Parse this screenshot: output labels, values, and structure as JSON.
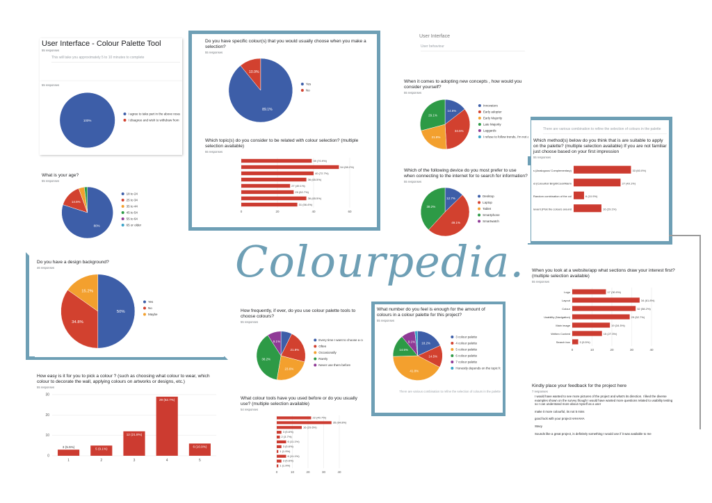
{
  "brand": "Colourpedia.",
  "panels": [
    {
      "title": "User Interface - Colour Palette Tool",
      "responses": "55 responses",
      "note": "This will take you approximately 5 to 10 minutes to complete"
    },
    {
      "responses": "55 responses",
      "chart": {
        "type": "pie",
        "categories": [
          "I agree to take part in the above research project",
          "I disagree and wish to withdraw from the research"
        ],
        "values": [
          100,
          0
        ],
        "value_labels": [
          "100%",
          null
        ],
        "colors": [
          "#3d5ea8",
          "#d2412f"
        ]
      }
    },
    {
      "question": "What is your age?",
      "responses": "55 responses",
      "chart": {
        "type": "pie",
        "categories": [
          "18 to 24",
          "25 to 34",
          "35 to 44",
          "45 to 54",
          "55 to 64",
          "65 or older"
        ],
        "values": [
          80,
          14.5,
          3.6,
          1.9,
          0,
          0
        ],
        "value_labels": [
          "80%",
          "14.5%",
          null,
          null,
          null,
          null
        ],
        "colors": [
          "#3d5ea8",
          "#d2412f",
          "#f3a02e",
          "#2d9a46",
          "#8f3a96",
          "#3aa3c8"
        ]
      }
    },
    {
      "question": "Do you have specific colour(s) that you would usually choose when you make a selection?",
      "responses": "55 responses",
      "chart": {
        "type": "pie",
        "categories": [
          "Yes",
          "No"
        ],
        "values": [
          89.1,
          10.9
        ],
        "value_labels": [
          "89.1%",
          "10.9%"
        ],
        "colors": [
          "#3d5ea8",
          "#d2412f"
        ]
      }
    },
    {
      "question": "Which topic(s) do you consider to be related with colour selection? (multiple selection available)",
      "responses": "55 responses",
      "chart": {
        "type": "hbar",
        "values": [
          39,
          54,
          40,
          36,
          27,
          29,
          36,
          31
        ],
        "value_labels": [
          "39 (70.9%)",
          "54 (98.2%)",
          "40 (72.7%)",
          "36 (65.5%)",
          "27 (49.1%)",
          "29 (52.7%)",
          "36 (65.5%)",
          "31 (56.4%)"
        ],
        "color": "#cc3b30",
        "xlim": [
          0,
          60
        ],
        "xticks": [
          0,
          20,
          40,
          60
        ]
      }
    },
    {
      "section": "User Interface",
      "note": "User behaviour"
    },
    {
      "question": "When it comes to adopting new concepts , how would you consider yourself?",
      "responses": "55 responses",
      "chart": {
        "type": "pie",
        "categories": [
          "Innovators",
          "Early adopter",
          "Early Majority",
          "Late Majority",
          "Laggards",
          "I refuse to follow trends, I'm not a sheep"
        ],
        "values": [
          14.5,
          34.5,
          21.8,
          29.1,
          0,
          0
        ],
        "value_labels": [
          "14.5%",
          "34.5%",
          "21.8%",
          "29.1%",
          null,
          null
        ],
        "colors": [
          "#3d5ea8",
          "#d2412f",
          "#f3a02e",
          "#2d9a46",
          "#8f3a96",
          "#3aa3c8"
        ]
      }
    },
    {
      "question": "Which of the following device do you most prefer to use when connecting to the internet for to search for information?",
      "responses": "55 responses",
      "chart": {
        "type": "pie",
        "categories": [
          "Desktop",
          "Laptop",
          "Tablet",
          "Smartphone",
          "Smartwatch"
        ],
        "values": [
          12.7,
          49.1,
          0,
          38.2,
          0
        ],
        "value_labels": [
          "12.7%",
          "49.1%",
          null,
          "38.2%",
          null
        ],
        "colors": [
          "#3d5ea8",
          "#d2412f",
          "#f3a02e",
          "#2d9a46",
          "#8f3a96"
        ]
      }
    },
    {
      "note": "There are various combination to refine the selection of colours in the palette",
      "question": "Which method(s) below do you think that is are suitable to apply on the palette? (multiple selection available) If you are not familiar just choose based on your first impression",
      "responses": "55 responses",
      "chart": {
        "type": "hbar",
        "categories": [
          "Colour Tones (Analogous/ Complementary)",
          "Colour Mood (Colourful/ Bright/Cool/Warm",
          "Randomly (Random combination of the col",
          "Most relevant (Pick the colours around"
        ],
        "values": [
          33,
          27,
          6,
          16
        ],
        "value_labels": [
          "33 (60.0%)",
          "27 (49.1%)",
          "6 (10.9%)",
          "16 (29.1%)"
        ],
        "color": "#cc3b30",
        "xlim": [
          0,
          40
        ]
      }
    },
    {
      "question": "Do you have a design background?",
      "responses": "46 responses",
      "chart": {
        "type": "pie",
        "categories": [
          "Yes",
          "No",
          "Maybe"
        ],
        "values": [
          50,
          34.8,
          15.2
        ],
        "value_labels": [
          "50%",
          "34.8%",
          "15.2%"
        ],
        "colors": [
          "#3d5ea8",
          "#d2412f",
          "#f3a02e"
        ]
      }
    },
    {
      "question": "How frequently, if ever, do you use colour palette tools to choose colours?",
      "responses": "55 responses",
      "chart": {
        "type": "pie",
        "categories": [
          "Every time I want to choose a colour",
          "Often",
          "Occasionally",
          "Rarely",
          "Never use them before"
        ],
        "values": [
          7.3,
          21.8,
          23.6,
          38.2,
          9.1
        ],
        "value_labels": [
          null,
          "21.8%",
          "23.6%",
          "38.2%",
          "9.1%"
        ],
        "colors": [
          "#3d5ea8",
          "#d2412f",
          "#f3a02e",
          "#2d9a46",
          "#8f3a96"
        ]
      }
    },
    {
      "question": "What colour tools have you used before or do you usually use? (multiple selection available)",
      "responses": "54 responses",
      "chart": {
        "type": "hbar",
        "values": [
          22,
          35,
          16,
          3,
          2,
          6,
          3,
          1,
          6,
          3,
          1
        ],
        "value_labels": [
          "22 (40.7%)",
          "35 (64.8%)",
          "16 (29.6%)",
          "3 (5.6%)",
          "2 (3.7%)",
          "6 (11.1%)",
          "3 (5.6%)",
          "1 (1.9%)",
          "6 (11.1%)",
          "3 (5.6%)",
          "1 (1.9%)"
        ],
        "color": "#cc3b30",
        "xlim": [
          0,
          40
        ],
        "xticks": [
          0,
          10,
          20,
          30,
          40
        ]
      }
    },
    {
      "question": "What number do you feel is enough for the amount of colours in a colour palette for this project?",
      "responses": "55 responses",
      "chart": {
        "type": "pie",
        "categories": [
          "3 colour palette",
          "4 colour palette",
          "5 colour palette",
          "6 colour palette",
          "7 colour palette",
          "Honestly depends on the topic for me"
        ],
        "values": [
          18.2,
          14.5,
          41.8,
          14.5,
          9.1,
          1.9
        ],
        "value_labels": [
          "18.2%",
          "14.5%",
          "41.8%",
          "14.5%",
          "9.1%",
          null
        ],
        "colors": [
          "#3d5ea8",
          "#d2412f",
          "#f3a02e",
          "#2d9a46",
          "#8f3a96",
          "#3aa3c8"
        ]
      },
      "footer": "There are various combination to refine the selection of colours in the palette"
    },
    {
      "question": "When you look at a website/app what sections draw your interest first? (multiple selection available)",
      "responses": "55 responses",
      "chart": {
        "type": "hbar",
        "categories": [
          "Logo",
          "Layout",
          "Colour",
          "Usability (Navigation)",
          "Main image",
          "Written Content",
          "Search box"
        ],
        "values": [
          17,
          34,
          32,
          29,
          19,
          15,
          3
        ],
        "value_labels": [
          "17 (30.9%)",
          "34 (61.8%)",
          "32 (58.2%)",
          "29 (52.7%)",
          "19 (34.5%)",
          "15 (27.3%)",
          "3 (5.5%)"
        ],
        "color": "#cc3b30",
        "xlim": [
          0,
          40
        ],
        "xticks": [
          0,
          10,
          20,
          30,
          40
        ]
      }
    },
    {
      "question": "Kindly place your feedback for the project here",
      "responses": "7 responses",
      "answers": [
        "I would have wanted to see more pictures of the project and what's its direction. I liked the diverse examples shown on the survey though I would have wanted more questions related to usability testing so I can understand more about myself as a user",
        "make it more colourful, its not 5 mins",
        "good luck with your project HAHAHA",
        "Stacy",
        "Sounds like a great project, is definitely something I would use if it was available to me"
      ]
    },
    {
      "question": "How easy is it for you to pick a colour ? (such as choosing what colour to wear, which colour to decorate the wall, applying colours on artworks or designs, etc.)",
      "responses": "55 responses",
      "chart": {
        "type": "column",
        "categories": [
          "1",
          "2",
          "3",
          "4",
          "5"
        ],
        "values": [
          3,
          5,
          12,
          29,
          6
        ],
        "value_labels": [
          "3 (5.5%)",
          "5 (9.1%)",
          "12 (21.8%)",
          "29 (52.7%)",
          "6 (10.9%)"
        ],
        "color": "#cc3b30",
        "ylim": [
          0,
          30
        ],
        "yticks": [
          0,
          10,
          20,
          30
        ]
      }
    }
  ]
}
